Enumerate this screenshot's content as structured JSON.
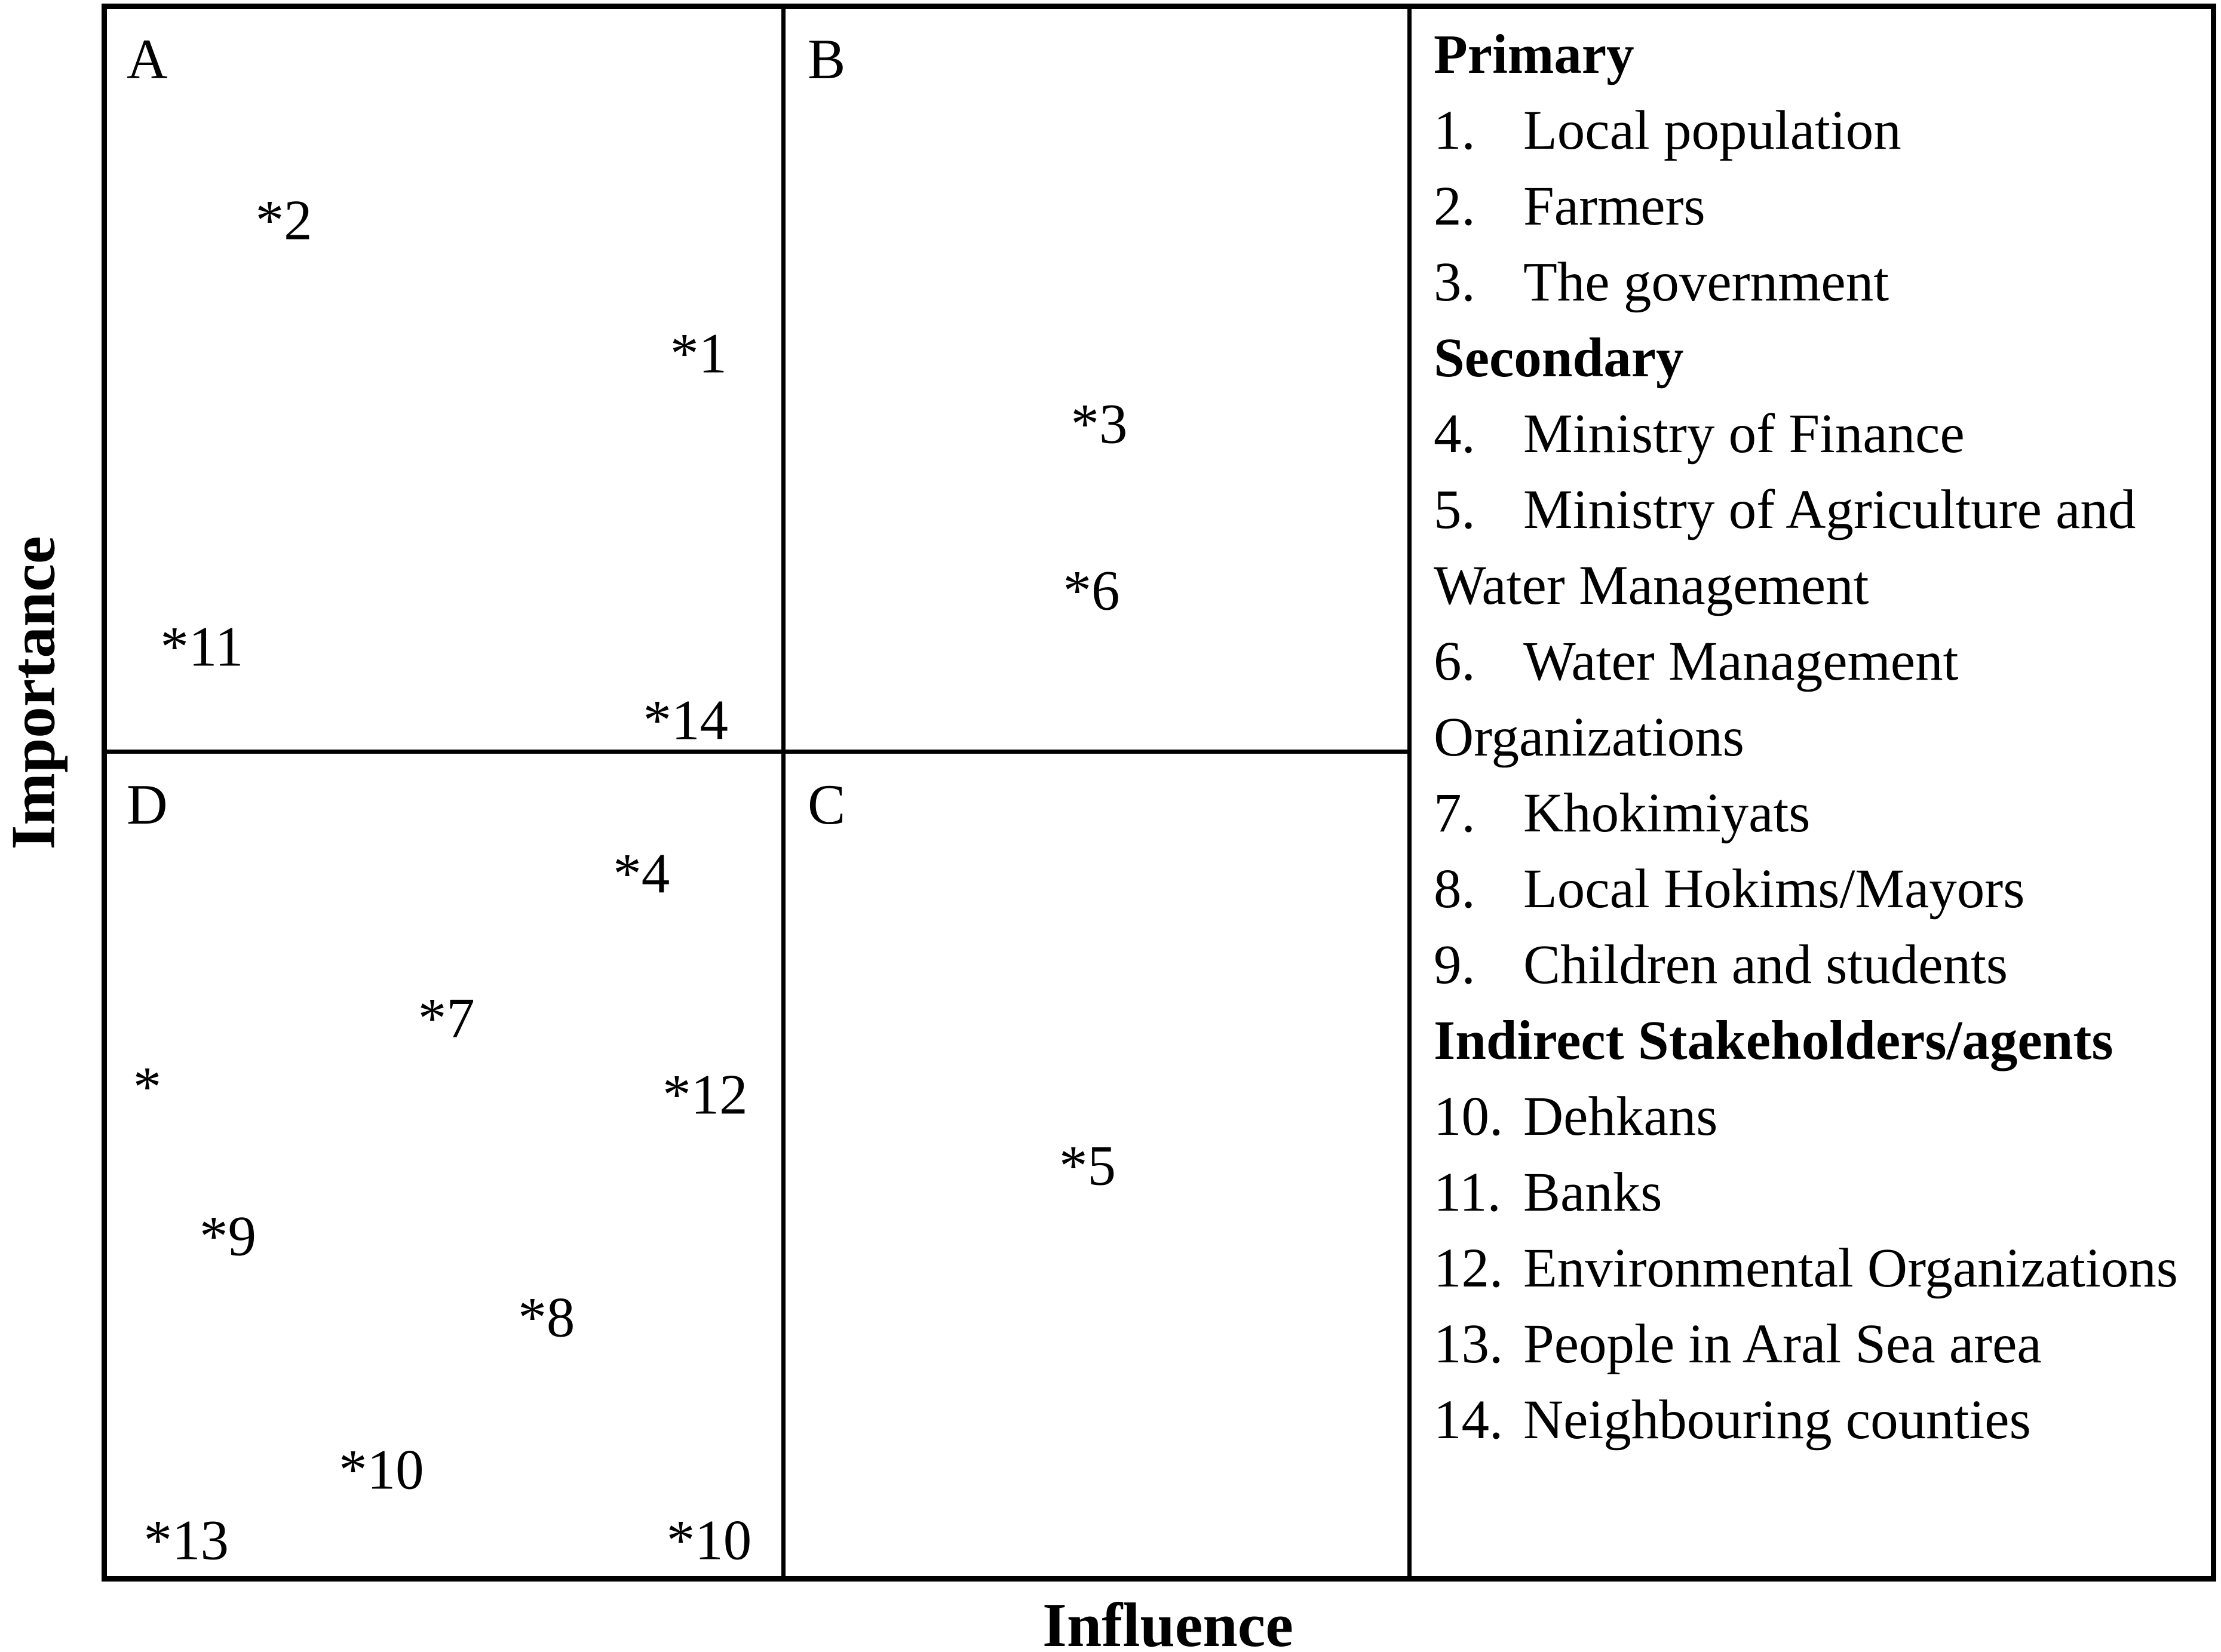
{
  "colors": {
    "ink": "#000000",
    "background": "#ffffff"
  },
  "axes": {
    "x_label": "Influence",
    "y_label": "Importance"
  },
  "quadrant_labels": {
    "A": "A",
    "B": "B",
    "C": "C",
    "D": "D"
  },
  "legend_lines": [
    {
      "style": "header",
      "text": "Primary"
    },
    {
      "style": "item",
      "num": "1.",
      "text": "Local population"
    },
    {
      "style": "item",
      "num": "2.",
      "text": "Farmers"
    },
    {
      "style": "item",
      "num": "3.",
      "text": "The government"
    },
    {
      "style": "header",
      "text": "Secondary"
    },
    {
      "style": "item",
      "num": "4.",
      "text": "Ministry of Finance"
    },
    {
      "style": "item",
      "num": "5.",
      "text": "Ministry of Agriculture and"
    },
    {
      "style": "cont",
      "text": "Water Management"
    },
    {
      "style": "item",
      "num": "6.",
      "text": "Water Management"
    },
    {
      "style": "cont",
      "text": "Organizations"
    },
    {
      "style": "item",
      "num": "7.",
      "text": "Khokimiyats"
    },
    {
      "style": "item",
      "num": "8.",
      "text": "Local Hokims/Mayors"
    },
    {
      "style": "item",
      "num": "9.",
      "text": "Children and students"
    },
    {
      "style": "header",
      "text": "Indirect Stakeholders/agents"
    },
    {
      "style": "item",
      "num": "10.",
      "text": "Dehkans"
    },
    {
      "style": "item",
      "num": "11.",
      "text": "Banks"
    },
    {
      "style": "item",
      "num": "12.",
      "text": "Environmental Organizations"
    },
    {
      "style": "item",
      "num": "13.",
      "text": "People in Aral Sea area"
    },
    {
      "style": "item",
      "num": "14.",
      "text": "Neighbouring counties"
    }
  ],
  "chart_data": {
    "type": "scatter",
    "title": "",
    "xlabel": "Influence",
    "ylabel": "Importance",
    "xlim": [
      0,
      100
    ],
    "ylim": [
      0,
      100
    ],
    "grid": false,
    "marker": "asterisk-with-number",
    "legend_position": "right-panel",
    "quadrants": {
      "divider_x_influence": 51.9,
      "divider_y_importance": 52.5,
      "A": "top-left",
      "B": "top-right",
      "C": "bottom-right",
      "D": "bottom-left"
    },
    "points": [
      {
        "label": "2",
        "influence": 13.6,
        "importance": 86.5,
        "quadrant": "A"
      },
      {
        "label": "1",
        "influence": 45.5,
        "importance": 78.0,
        "quadrant": "A"
      },
      {
        "label": "3",
        "influence": 76.3,
        "importance": 73.5,
        "quadrant": "B"
      },
      {
        "label": "6",
        "influence": 75.7,
        "importance": 62.9,
        "quadrant": "B"
      },
      {
        "label": "11",
        "influence": 7.3,
        "importance": 59.3,
        "quadrant": "A"
      },
      {
        "label": "14",
        "influence": 44.5,
        "importance": 54.6,
        "quadrant": "A"
      },
      {
        "label": "4",
        "influence": 41.1,
        "importance": 44.8,
        "quadrant": "D"
      },
      {
        "label": "7",
        "influence": 26.1,
        "importance": 35.6,
        "quadrant": "D"
      },
      {
        "label": "",
        "influence": 3.1,
        "importance": 31.2,
        "quadrant": "D"
      },
      {
        "label": "12",
        "influence": 46.0,
        "importance": 30.7,
        "quadrant": "D"
      },
      {
        "label": "5",
        "influence": 75.4,
        "importance": 26.2,
        "quadrant": "C"
      },
      {
        "label": "9",
        "influence": 9.3,
        "importance": 21.7,
        "quadrant": "D"
      },
      {
        "label": "8",
        "influence": 33.8,
        "importance": 16.5,
        "quadrant": "D"
      },
      {
        "label": "10",
        "influence": 21.1,
        "importance": 6.8,
        "quadrant": "D"
      },
      {
        "label": "13",
        "influence": 6.1,
        "importance": 2.3,
        "quadrant": "D"
      },
      {
        "label": "10",
        "influence": 46.3,
        "importance": 2.3,
        "quadrant": "D"
      }
    ],
    "stakeholders": [
      {
        "num": 1,
        "name": "Local population",
        "group": "Primary"
      },
      {
        "num": 2,
        "name": "Farmers",
        "group": "Primary"
      },
      {
        "num": 3,
        "name": "The government",
        "group": "Primary"
      },
      {
        "num": 4,
        "name": "Ministry of Finance",
        "group": "Secondary"
      },
      {
        "num": 5,
        "name": "Ministry of Agriculture and Water Management",
        "group": "Secondary"
      },
      {
        "num": 6,
        "name": "Water Management Organizations",
        "group": "Secondary"
      },
      {
        "num": 7,
        "name": "Khokimiyats",
        "group": "Secondary"
      },
      {
        "num": 8,
        "name": "Local Hokims/Mayors",
        "group": "Secondary"
      },
      {
        "num": 9,
        "name": "Children and students",
        "group": "Secondary"
      },
      {
        "num": 10,
        "name": "Dehkans",
        "group": "Indirect Stakeholders/agents"
      },
      {
        "num": 11,
        "name": "Banks",
        "group": "Indirect Stakeholders/agents"
      },
      {
        "num": 12,
        "name": "Environmental Organizations",
        "group": "Indirect Stakeholders/agents"
      },
      {
        "num": 13,
        "name": "People in Aral Sea area",
        "group": "Indirect Stakeholders/agents"
      },
      {
        "num": 14,
        "name": "Neighbouring counties",
        "group": "Indirect Stakeholders/agents"
      }
    ]
  }
}
